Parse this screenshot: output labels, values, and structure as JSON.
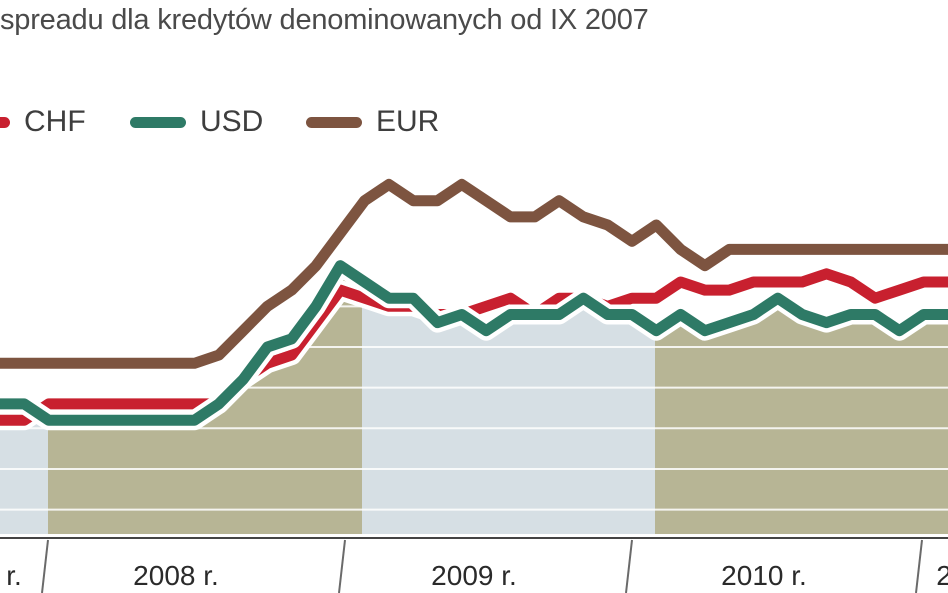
{
  "title": "spreadu dla kredytów denominowanych od IX 2007",
  "colors": {
    "CHF": "#c8202f",
    "USD": "#2e7a66",
    "EUR": "#7d5440",
    "band_light": "#d6dfe4",
    "band_olive": "#b7b595",
    "grid": "#ffffff",
    "axis": "#555555"
  },
  "legend": [
    {
      "name": "CHF",
      "color_key": "CHF"
    },
    {
      "name": "USD",
      "color_key": "USD"
    },
    {
      "name": "EUR",
      "color_key": "EUR"
    }
  ],
  "chart_data": {
    "type": "line",
    "title": "spreadu dla kredytów denominowanych od IX 2007",
    "xlabel": "",
    "ylabel": "",
    "grid": true,
    "legend_position": "top-left",
    "x_unit": "months since 2007-09 (approx.)",
    "x_tick_labels": [
      "r.",
      "2008 r.",
      "2009 r.",
      "2010 r.",
      "2"
    ],
    "series": [
      {
        "name": "EUR",
        "x": [
          0,
          1,
          2,
          3,
          4,
          5,
          6,
          7,
          8,
          9,
          10,
          11,
          12,
          13,
          14,
          15,
          16,
          17,
          18,
          19,
          20,
          21,
          22,
          23,
          24,
          25,
          26,
          27,
          28,
          29,
          30,
          31,
          32,
          33,
          34,
          35,
          36,
          37,
          38,
          39
        ],
        "values": [
          3.1,
          3.1,
          3.1,
          3.1,
          3.1,
          3.1,
          3.1,
          3.1,
          3.1,
          3.2,
          3.5,
          3.8,
          4.0,
          4.3,
          4.7,
          5.1,
          5.3,
          5.1,
          5.1,
          5.3,
          5.1,
          4.9,
          4.9,
          5.1,
          4.9,
          4.8,
          4.6,
          4.8,
          4.5,
          4.3,
          4.5,
          4.5,
          4.5,
          4.5,
          4.5,
          4.5,
          4.5,
          4.5,
          4.5,
          4.5
        ],
        "color_key": "EUR"
      },
      {
        "name": "USD",
        "x": [
          0,
          1,
          2,
          3,
          4,
          5,
          6,
          7,
          8,
          9,
          10,
          11,
          12,
          13,
          14,
          15,
          16,
          17,
          18,
          19,
          20,
          21,
          22,
          23,
          24,
          25,
          26,
          27,
          28,
          29,
          30,
          31,
          32,
          33,
          34,
          35,
          36,
          37,
          38,
          39
        ],
        "values": [
          2.6,
          2.6,
          2.4,
          2.4,
          2.4,
          2.4,
          2.4,
          2.4,
          2.4,
          2.6,
          2.9,
          3.3,
          3.4,
          3.8,
          4.3,
          4.1,
          3.9,
          3.9,
          3.6,
          3.7,
          3.5,
          3.7,
          3.7,
          3.7,
          3.9,
          3.7,
          3.7,
          3.5,
          3.7,
          3.5,
          3.6,
          3.7,
          3.9,
          3.7,
          3.6,
          3.7,
          3.7,
          3.5,
          3.7,
          3.7
        ],
        "color_key": "USD"
      },
      {
        "name": "CHF",
        "x": [
          0,
          1,
          2,
          3,
          4,
          5,
          6,
          7,
          8,
          9,
          10,
          11,
          12,
          13,
          14,
          15,
          16,
          17,
          18,
          19,
          20,
          21,
          22,
          23,
          24,
          25,
          26,
          27,
          28,
          29,
          30,
          31,
          32,
          33,
          34,
          35,
          36,
          37,
          38,
          39
        ],
        "values": [
          2.4,
          2.4,
          2.6,
          2.6,
          2.6,
          2.6,
          2.6,
          2.6,
          2.6,
          2.6,
          2.9,
          3.1,
          3.2,
          3.6,
          4.0,
          3.9,
          3.8,
          3.8,
          3.7,
          3.7,
          3.8,
          3.9,
          3.7,
          3.9,
          3.9,
          3.8,
          3.9,
          3.9,
          4.1,
          4.0,
          4.0,
          4.1,
          4.1,
          4.1,
          4.2,
          4.1,
          3.9,
          4.0,
          4.1,
          4.1
        ],
        "color_key": "CHF"
      }
    ]
  }
}
